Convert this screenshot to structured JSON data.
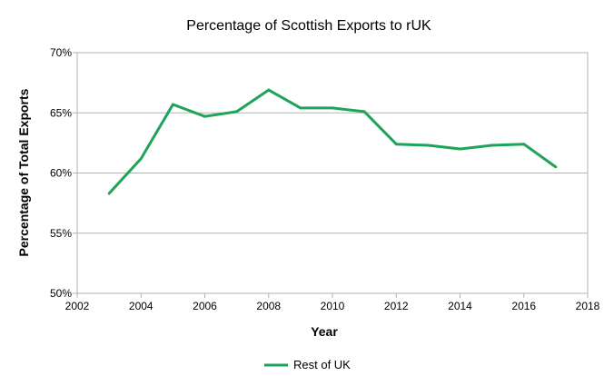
{
  "chart_data": {
    "type": "line",
    "title": "Percentage of Scottish Exports to rUK",
    "xlabel": "Year",
    "ylabel": "Percentage of Total Exports",
    "xlim": [
      2002,
      2018
    ],
    "ylim": [
      50,
      70
    ],
    "x_ticks": [
      2002,
      2004,
      2006,
      2008,
      2010,
      2012,
      2014,
      2016,
      2018
    ],
    "y_ticks": [
      50,
      55,
      60,
      65,
      70
    ],
    "y_tick_labels": [
      "50%",
      "55%",
      "60%",
      "65%",
      "70%"
    ],
    "grid": "horizontal",
    "legend_position": "bottom",
    "series": [
      {
        "name": "Rest of UK",
        "color": "#1fa25a",
        "x": [
          2003,
          2004,
          2005,
          2006,
          2007,
          2008,
          2009,
          2010,
          2011,
          2012,
          2013,
          2014,
          2015,
          2016,
          2017
        ],
        "y": [
          58.3,
          61.2,
          65.7,
          64.7,
          65.1,
          66.9,
          65.4,
          65.4,
          65.1,
          62.4,
          62.3,
          62.0,
          62.3,
          62.4,
          60.5
        ]
      }
    ]
  }
}
